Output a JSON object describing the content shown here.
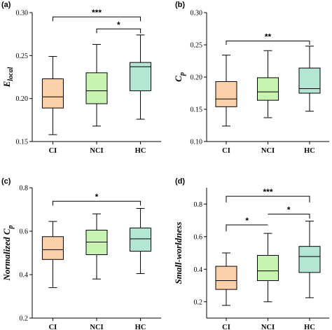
{
  "chart_data": [
    {
      "type": "box",
      "panel_label": "(a)",
      "ylabel": "E_local",
      "ylabel_main": "E",
      "ylabel_sub": "local",
      "categories": [
        "CI",
        "NCI",
        "HC"
      ],
      "colors": [
        "#fcd0a8",
        "#c9f3b0",
        "#b4e6d4"
      ],
      "ylim": [
        0.15,
        0.3
      ],
      "yticks": [
        0.15,
        0.2,
        0.25,
        0.3
      ],
      "ytick_labels": [
        "0.15",
        "0.20",
        "0.25",
        "0.30"
      ],
      "boxes": [
        {
          "min": 0.158,
          "q1": 0.189,
          "median": 0.202,
          "q3": 0.223,
          "max": 0.249
        },
        {
          "min": 0.168,
          "q1": 0.194,
          "median": 0.209,
          "q3": 0.23,
          "max": 0.263
        },
        {
          "min": 0.176,
          "q1": 0.209,
          "median": 0.237,
          "q3": 0.242,
          "max": 0.274
        }
      ],
      "significance": [
        {
          "from": 0,
          "to": 2,
          "label": "***",
          "level": 0.295,
          "left_drop": 0.29,
          "right_drop": 0.29
        },
        {
          "from": 1,
          "to": 2,
          "label": "*",
          "level": 0.281,
          "left_drop": 0.276,
          "right_drop": 0.276
        }
      ]
    },
    {
      "type": "box",
      "panel_label": "(b)",
      "ylabel": "C_p",
      "ylabel_main": "C",
      "ylabel_sub": "p",
      "categories": [
        "CI",
        "NCI",
        "HC"
      ],
      "colors": [
        "#fcd0a8",
        "#c9f3b0",
        "#b4e6d4"
      ],
      "ylim": [
        0.1,
        0.3
      ],
      "yticks": [
        0.1,
        0.15,
        0.2,
        0.25,
        0.3
      ],
      "ytick_labels": [
        "0.10",
        "0.15",
        "0.20",
        "0.25",
        "0.30"
      ],
      "boxes": [
        {
          "min": 0.124,
          "q1": 0.154,
          "median": 0.166,
          "q3": 0.193,
          "max": 0.234
        },
        {
          "min": 0.137,
          "q1": 0.164,
          "median": 0.177,
          "q3": 0.199,
          "max": 0.241
        },
        {
          "min": 0.147,
          "q1": 0.175,
          "median": 0.182,
          "q3": 0.214,
          "max": 0.248
        }
      ],
      "significance": [
        {
          "from": 0,
          "to": 2,
          "label": "**",
          "level": 0.256,
          "left_drop": 0.25,
          "right_drop": 0.25
        }
      ]
    },
    {
      "type": "box",
      "panel_label": "(c)",
      "ylabel": "Normalized C_p",
      "ylabel_main": "Normalized C",
      "ylabel_sub": "p",
      "categories": [
        "CI",
        "NCI",
        "HC"
      ],
      "colors": [
        "#fcd0a8",
        "#c9f3b0",
        "#b4e6d4"
      ],
      "ylim": [
        0.2,
        0.8
      ],
      "yticks": [
        0.2,
        0.4,
        0.6,
        0.8
      ],
      "ytick_labels": [
        "0.2",
        "0.4",
        "0.6",
        "0.8"
      ],
      "boxes": [
        {
          "min": 0.34,
          "q1": 0.47,
          "median": 0.515,
          "q3": 0.575,
          "max": 0.645
        },
        {
          "min": 0.38,
          "q1": 0.492,
          "median": 0.55,
          "q3": 0.605,
          "max": 0.68
        },
        {
          "min": 0.405,
          "q1": 0.508,
          "median": 0.565,
          "q3": 0.615,
          "max": 0.705
        }
      ],
      "significance": [
        {
          "from": 0,
          "to": 2,
          "label": "*",
          "level": 0.738,
          "left_drop": 0.718,
          "right_drop": 0.718
        }
      ]
    },
    {
      "type": "box",
      "panel_label": "(d)",
      "ylabel": "Small-worldness",
      "ylabel_main": "Small-worldness",
      "ylabel_sub": "",
      "categories": [
        "CI",
        "NCI",
        "HC"
      ],
      "colors": [
        "#fcd0a8",
        "#c9f3b0",
        "#b4e6d4"
      ],
      "ylim": [
        0.1,
        0.9
      ],
      "yticks": [
        0.2,
        0.4,
        0.6,
        0.8
      ],
      "ytick_labels": [
        "0.2",
        "0.4",
        "0.6",
        "0.8"
      ],
      "boxes": [
        {
          "min": 0.178,
          "q1": 0.276,
          "median": 0.33,
          "q3": 0.418,
          "max": 0.5
        },
        {
          "min": 0.2,
          "q1": 0.33,
          "median": 0.39,
          "q3": 0.485,
          "max": 0.62
        },
        {
          "min": 0.225,
          "q1": 0.38,
          "median": 0.478,
          "q3": 0.54,
          "max": 0.695
        }
      ],
      "significance": [
        {
          "from": 0,
          "to": 2,
          "label": "***",
          "level": 0.848,
          "left_drop": 0.81,
          "right_drop": 0.81
        },
        {
          "from": 0,
          "to": 1,
          "label": "*",
          "level": 0.672,
          "left_drop": 0.632,
          "right_drop": 0.672
        },
        {
          "from": 1,
          "to": 2,
          "label": "*",
          "level": 0.738,
          "left_drop": 0.738,
          "right_drop": 0.71
        }
      ]
    }
  ]
}
